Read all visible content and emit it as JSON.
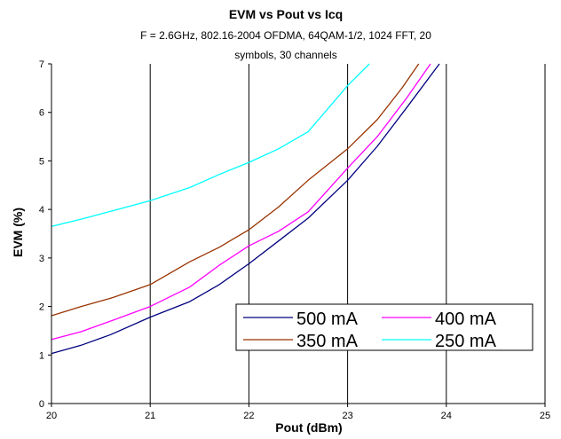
{
  "chart_data": {
    "type": "line",
    "title": "EVM vs Pout vs Icq",
    "subtitle_lines": [
      "F = 2.6GHz, 802.16-2004 OFDMA, 64QAM-1/2, 1024 FFT, 20",
      "symbols, 30 channels"
    ],
    "xlabel": "Pout (dBm)",
    "ylabel": "EVM (%)",
    "xlim": [
      20,
      25
    ],
    "ylim": [
      0,
      7
    ],
    "xticks": [
      20,
      21,
      22,
      23,
      24,
      25
    ],
    "yticks": [
      0,
      1,
      2,
      3,
      4,
      5,
      6,
      7
    ],
    "grid": "vertical major",
    "legend_position": "bottom-right",
    "series": [
      {
        "name": "500 mA",
        "color": "#000080",
        "points": [
          [
            20.0,
            1.03
          ],
          [
            20.3,
            1.2
          ],
          [
            20.6,
            1.42
          ],
          [
            21.0,
            1.78
          ],
          [
            21.4,
            2.1
          ],
          [
            21.7,
            2.45
          ],
          [
            22.0,
            2.88
          ],
          [
            22.3,
            3.35
          ],
          [
            22.6,
            3.82
          ],
          [
            23.0,
            4.6
          ],
          [
            23.3,
            5.3
          ],
          [
            23.6,
            6.1
          ],
          [
            23.93,
            7.0
          ]
        ]
      },
      {
        "name": "400 mA",
        "color": "#ff00ff",
        "points": [
          [
            20.0,
            1.32
          ],
          [
            20.3,
            1.48
          ],
          [
            20.6,
            1.7
          ],
          [
            21.0,
            2.0
          ],
          [
            21.4,
            2.4
          ],
          [
            21.7,
            2.85
          ],
          [
            22.0,
            3.25
          ],
          [
            22.3,
            3.55
          ],
          [
            22.6,
            3.95
          ],
          [
            23.0,
            4.85
          ],
          [
            23.3,
            5.5
          ],
          [
            23.6,
            6.3
          ],
          [
            23.84,
            7.0
          ]
        ]
      },
      {
        "name": "350 mA",
        "color": "#993300",
        "points": [
          [
            20.0,
            1.81
          ],
          [
            20.3,
            2.0
          ],
          [
            20.6,
            2.17
          ],
          [
            21.0,
            2.45
          ],
          [
            21.4,
            2.92
          ],
          [
            21.7,
            3.22
          ],
          [
            22.0,
            3.58
          ],
          [
            22.3,
            4.05
          ],
          [
            22.6,
            4.6
          ],
          [
            23.0,
            5.25
          ],
          [
            23.3,
            5.85
          ],
          [
            23.55,
            6.5
          ],
          [
            23.72,
            7.0
          ]
        ]
      },
      {
        "name": "250 mA",
        "color": "#00ffff",
        "points": [
          [
            20.0,
            3.65
          ],
          [
            20.3,
            3.8
          ],
          [
            20.6,
            3.96
          ],
          [
            21.0,
            4.18
          ],
          [
            21.4,
            4.45
          ],
          [
            21.7,
            4.72
          ],
          [
            22.0,
            4.97
          ],
          [
            22.3,
            5.25
          ],
          [
            22.6,
            5.6
          ],
          [
            23.0,
            6.55
          ],
          [
            23.22,
            7.0
          ]
        ]
      }
    ]
  }
}
